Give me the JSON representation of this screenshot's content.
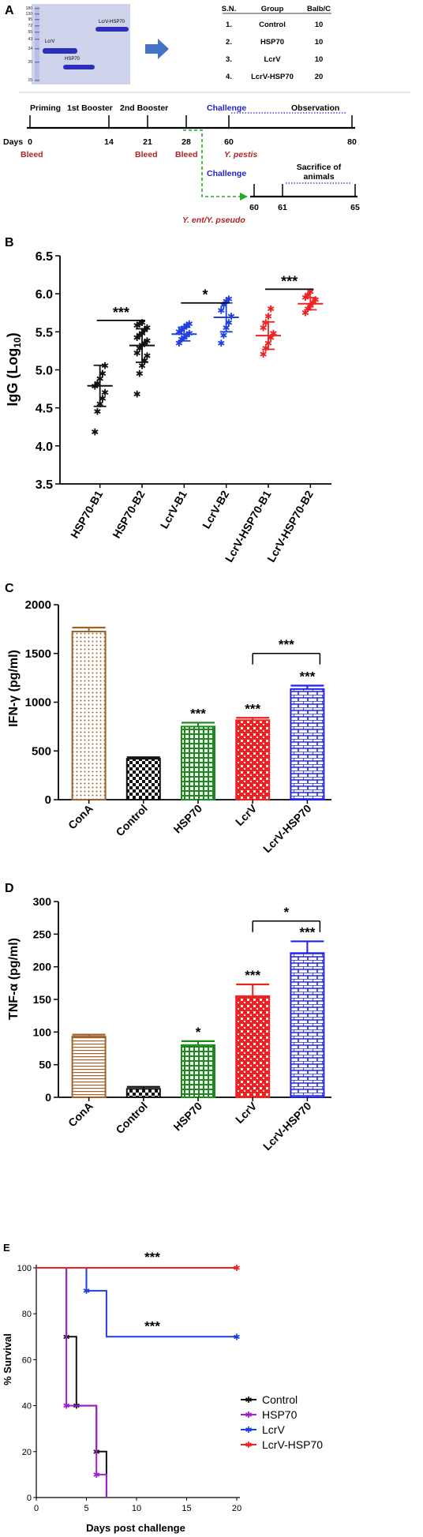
{
  "panels": {
    "A": {
      "letter": "A",
      "gel": {
        "ladder": [
          "180",
          "130",
          "95",
          "72",
          "55",
          "43",
          "34",
          "26",
          "15"
        ],
        "band_labels": [
          "LcrV",
          "HSP70",
          "LcrV-HSP70"
        ]
      },
      "table": {
        "headers": [
          "S.N.",
          "Group",
          "Balb/C"
        ],
        "rows": [
          [
            "1.",
            "Control",
            "10"
          ],
          [
            "2.",
            "HSP70",
            "10"
          ],
          [
            "3.",
            "LcrV",
            "10"
          ],
          [
            "4.",
            "LcrV-HSP70",
            "20"
          ]
        ]
      },
      "timeline": {
        "days_label": "Days",
        "events": [
          "Priming",
          "1st Booster",
          "2nd Booster"
        ],
        "challenge": "Challenge",
        "observation": "Observation",
        "sacrifice_line1": "Sacrifice of",
        "sacrifice_line2": "animals",
        "ticks": [
          "0",
          "14",
          "21",
          "28",
          "60",
          "80"
        ],
        "ticks2": [
          "60",
          "61",
          "65"
        ],
        "bleed": "Bleed",
        "pathogen1": "Y. pestis",
        "pathogen2": "Y. ent/Y. pseudo",
        "colors": {
          "bleed": "#b22222",
          "challenge": "#1f1fd0",
          "arrow": "#22aa22"
        }
      }
    },
    "B": {
      "letter": "B",
      "ylabel": "IgG (Log10)",
      "significance": [
        "***",
        "*",
        "***"
      ]
    },
    "C": {
      "letter": "C",
      "ylabel": "IFN-γ (pg/ml)",
      "significance": [
        "***",
        "***",
        "***",
        "***"
      ]
    },
    "D": {
      "letter": "D",
      "ylabel": "TNF-α (pg/ml)",
      "significance": [
        "*",
        "***",
        "***",
        "*"
      ]
    },
    "E": {
      "letter": "E",
      "ylabel": "% Survival",
      "xlabel": "Days post challenge",
      "significance": [
        "***",
        "***"
      ]
    }
  },
  "chart_data": [
    {
      "id": "B",
      "type": "scatter",
      "ylabel": "IgG (Log10)",
      "ylim": [
        3.5,
        6.5
      ],
      "yticks": [
        3.5,
        4.0,
        4.5,
        5.0,
        5.5,
        6.0,
        6.5
      ],
      "categories": [
        "HSP70-B1",
        "HSP70-B2",
        "LcrV-B1",
        "LcrV-B2",
        "LcrV-HSP70-B1",
        "LcrV-HSP70-B2"
      ],
      "colors": [
        "#111111",
        "#111111",
        "#1f3fe0",
        "#1f3fe0",
        "#ee2222",
        "#ee2222"
      ],
      "means": [
        4.79,
        5.32,
        5.47,
        5.69,
        5.45,
        5.87
      ],
      "sd": [
        0.27,
        0.22,
        0.09,
        0.19,
        0.18,
        0.08
      ],
      "points": [
        [
          4.18,
          4.45,
          4.55,
          4.62,
          4.7,
          4.78,
          4.82,
          4.88,
          4.95,
          5.05
        ],
        [
          4.68,
          4.95,
          5.05,
          5.12,
          5.18,
          5.22,
          5.28,
          5.32,
          5.35,
          5.38,
          5.42,
          5.45,
          5.48,
          5.52,
          5.55,
          5.58,
          5.6,
          5.62
        ],
        [
          5.35,
          5.4,
          5.42,
          5.45,
          5.48,
          5.5,
          5.52,
          5.55,
          5.58,
          5.6
        ],
        [
          5.35,
          5.45,
          5.55,
          5.62,
          5.7,
          5.78,
          5.85,
          5.9,
          5.93
        ],
        [
          5.2,
          5.28,
          5.35,
          5.42,
          5.48,
          5.55,
          5.62,
          5.7,
          5.8
        ],
        [
          5.75,
          5.8,
          5.84,
          5.88,
          5.92,
          5.95,
          5.98,
          6.02
        ]
      ],
      "brackets": [
        {
          "from": 0,
          "to": 1,
          "label": "***",
          "y": 5.65
        },
        {
          "from": 2,
          "to": 3,
          "label": "*",
          "y": 5.88
        },
        {
          "from": 4,
          "to": 5,
          "label": "***",
          "y": 6.06
        }
      ]
    },
    {
      "id": "C",
      "type": "bar",
      "ylabel": "IFN-γ (pg/ml)",
      "ylim": [
        0,
        2000
      ],
      "yticks": [
        0,
        500,
        1000,
        1500,
        2000
      ],
      "categories": [
        "ConA",
        "Control",
        "HSP70",
        "LcrV",
        "LcrV-HSP70"
      ],
      "values": [
        1725,
        420,
        750,
        815,
        1135
      ],
      "errors": [
        40,
        15,
        40,
        25,
        35
      ],
      "colors": [
        "#a0612a",
        "#111111",
        "#1a8a1a",
        "#ee2020",
        "#1f20e8"
      ],
      "patterns": [
        "dots",
        "checker",
        "grid",
        "bricksm",
        "brick"
      ],
      "stars": [
        "",
        "",
        "***",
        "***",
        "***"
      ],
      "bracket": {
        "from": 3,
        "to": 4,
        "label": "***",
        "y": 1500
      }
    },
    {
      "id": "D",
      "type": "bar",
      "ylabel": "TNF-α (pg/ml)",
      "ylim": [
        0,
        300
      ],
      "yticks": [
        0,
        50,
        100,
        150,
        200,
        250,
        300
      ],
      "categories": [
        "ConA",
        "Control",
        "HSP70",
        "LcrV",
        "LcrV-HSP70"
      ],
      "values": [
        93,
        13,
        80,
        155,
        221
      ],
      "errors": [
        3,
        3,
        6,
        18,
        18
      ],
      "colors": [
        "#a0612a",
        "#111111",
        "#1a8a1a",
        "#ee2020",
        "#1f20e8"
      ],
      "patterns": [
        "hlines",
        "checker",
        "grid",
        "bricksm",
        "brick"
      ],
      "stars": [
        "",
        "",
        "*",
        "***",
        "***"
      ],
      "bracket": {
        "from": 3,
        "to": 4,
        "label": "*",
        "y": 270
      }
    },
    {
      "id": "E",
      "type": "line",
      "ylabel": "% Survival",
      "xlabel": "Days post challenge",
      "xlim": [
        0,
        20
      ],
      "ylim": [
        0,
        100
      ],
      "xticks": [
        0,
        5,
        10,
        15,
        20
      ],
      "yticks": [
        0,
        20,
        40,
        60,
        80,
        100
      ],
      "series": [
        {
          "name": "Control",
          "color": "#111111",
          "steps": [
            [
              0,
              100
            ],
            [
              3,
              70
            ],
            [
              4,
              40
            ],
            [
              6,
              20
            ],
            [
              7,
              0
            ]
          ],
          "marks": [
            [
              3,
              70
            ],
            [
              4,
              40
            ],
            [
              6,
              20
            ]
          ]
        },
        {
          "name": "HSP70",
          "color": "#a020d0",
          "steps": [
            [
              0,
              100
            ],
            [
              3,
              40
            ],
            [
              6,
              10
            ],
            [
              7,
              0
            ]
          ],
          "marks": [
            [
              3,
              40
            ],
            [
              6,
              10
            ]
          ]
        },
        {
          "name": "LcrV",
          "color": "#1f3fe0",
          "steps": [
            [
              0,
              100
            ],
            [
              5,
              90
            ],
            [
              7,
              70
            ],
            [
              20,
              70
            ]
          ],
          "marks": [
            [
              5,
              90
            ],
            [
              20,
              70
            ]
          ]
        },
        {
          "name": "LcrV-HSP70",
          "color": "#ee2222",
          "steps": [
            [
              0,
              100
            ],
            [
              20,
              100
            ]
          ],
          "marks": [
            [
              20,
              100
            ]
          ]
        }
      ],
      "annotations": [
        {
          "x": 10,
          "y": 100,
          "label": "***"
        },
        {
          "x": 10,
          "y": 70,
          "label": "***"
        }
      ]
    }
  ]
}
